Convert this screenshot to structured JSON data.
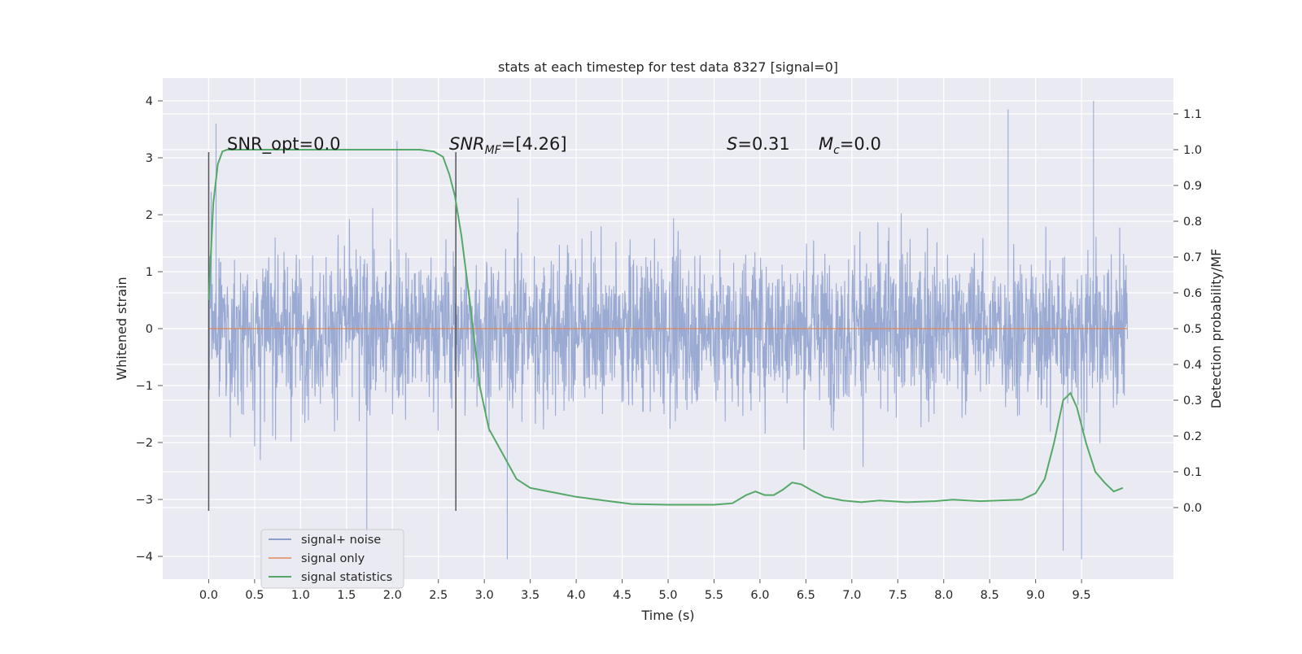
{
  "chart_data": {
    "type": "line",
    "title": "stats at each timestep for test data 8327 [signal=0]",
    "xlabel": "Time (s)",
    "ylabel": "Whitened strain",
    "y2label": "Detection probability/MF",
    "xlim": [
      -0.5,
      10.5
    ],
    "ylim": [
      -4.4,
      4.4
    ],
    "y2lim": [
      -0.2,
      1.2
    ],
    "x_ticks": [
      0.0,
      0.5,
      1.0,
      1.5,
      2.0,
      2.5,
      3.0,
      3.5,
      4.0,
      4.5,
      5.0,
      5.5,
      6.0,
      6.5,
      7.0,
      7.5,
      8.0,
      8.5,
      9.0,
      9.5
    ],
    "x_tick_labels": [
      "0.0",
      "0.5",
      "1.0",
      "1.5",
      "2.0",
      "2.5",
      "3.0",
      "3.5",
      "4.0",
      "4.5",
      "5.0",
      "5.5",
      "6.0",
      "6.5",
      "7.0",
      "7.5",
      "8.0",
      "8.5",
      "9.0",
      "9.5"
    ],
    "y_ticks": [
      4,
      3,
      2,
      1,
      0,
      -1,
      -2,
      -3,
      -4
    ],
    "y_tick_labels": [
      "4",
      "3",
      "2",
      "1",
      "0",
      "−1",
      "−2",
      "−3",
      "−4"
    ],
    "y2_ticks": [
      1.1,
      1.0,
      0.9,
      0.8,
      0.7,
      0.6,
      0.5,
      0.4,
      0.3,
      0.2,
      0.1,
      0.0
    ],
    "y2_tick_labels": [
      "1.1",
      "1.0",
      "0.9",
      "0.8",
      "0.7",
      "0.6",
      "0.5",
      "0.4",
      "0.3",
      "0.2",
      "0.1",
      "0.0"
    ],
    "grid": true,
    "legend_position": "lower-left",
    "legend": [
      "signal+ noise",
      "signal only",
      "signal statistics"
    ],
    "colors": {
      "signal_noise": "#8c9fcc",
      "signal_only": "#dd8452",
      "signal_statistics": "#55a868",
      "background": "#eaeaf2",
      "grid": "#ffffff"
    },
    "series": [
      {
        "name": "signal+ noise",
        "axis": "left",
        "x_range": [
          0.0,
          10.0
        ],
        "approx_envelope": [
          -4.05,
          4.0
        ],
        "note_peaks": [
          [
            0.08,
            3.6
          ],
          [
            8.7,
            3.85
          ],
          [
            9.63,
            4.0
          ],
          [
            2.05,
            3.3
          ],
          [
            1.72,
            -3.95
          ],
          [
            3.25,
            -4.05
          ],
          [
            9.3,
            -3.9
          ],
          [
            9.5,
            -4.05
          ]
        ]
      },
      {
        "name": "signal only",
        "axis": "left",
        "x": [
          0.0,
          10.0
        ],
        "y": [
          0.0,
          0.0
        ]
      },
      {
        "name": "signal statistics",
        "axis": "right",
        "x": [
          0.0,
          0.05,
          0.1,
          0.15,
          0.2,
          0.3,
          0.5,
          1.0,
          1.5,
          2.0,
          2.3,
          2.45,
          2.55,
          2.62,
          2.68,
          2.75,
          2.85,
          2.95,
          3.05,
          3.2,
          3.35,
          3.5,
          3.6,
          3.8,
          4.0,
          4.3,
          4.6,
          5.0,
          5.5,
          5.7,
          5.85,
          5.95,
          6.05,
          6.15,
          6.25,
          6.35,
          6.45,
          6.55,
          6.7,
          6.9,
          7.1,
          7.3,
          7.6,
          7.9,
          8.1,
          8.4,
          8.6,
          8.85,
          9.0,
          9.1,
          9.2,
          9.3,
          9.38,
          9.45,
          9.55,
          9.65,
          9.75,
          9.85,
          9.95
        ],
        "y": [
          0.58,
          0.85,
          0.96,
          0.995,
          1.0,
          1.0,
          1.0,
          1.0,
          1.0,
          1.0,
          1.0,
          0.995,
          0.98,
          0.93,
          0.87,
          0.76,
          0.56,
          0.34,
          0.22,
          0.15,
          0.08,
          0.055,
          0.05,
          0.04,
          0.03,
          0.02,
          0.01,
          0.008,
          0.008,
          0.012,
          0.035,
          0.045,
          0.035,
          0.035,
          0.05,
          0.07,
          0.065,
          0.05,
          0.03,
          0.02,
          0.015,
          0.02,
          0.015,
          0.018,
          0.022,
          0.018,
          0.02,
          0.022,
          0.04,
          0.08,
          0.18,
          0.3,
          0.32,
          0.28,
          0.18,
          0.1,
          0.07,
          0.045,
          0.055
        ]
      }
    ],
    "vlines": [
      {
        "x": 0.0,
        "ymin": -3.2,
        "ymax": 3.1
      },
      {
        "x": 2.69,
        "ymin": -3.2,
        "ymax": 3.1
      }
    ],
    "annotations": [
      {
        "text": "SNR_opt=0.0",
        "x": 0.2,
        "y": 3.2
      },
      {
        "text_main": "SNR",
        "text_sub": "MF",
        "text_rest": "=[4.26]",
        "x": 2.6,
        "y": 3.2
      },
      {
        "text_main": "S",
        "text_rest": "=0.31",
        "x": 5.6,
        "y": 3.2
      },
      {
        "text_main": "M",
        "text_sub": "c",
        "text_rest": "=0.0",
        "x": 6.6,
        "y": 3.2
      }
    ]
  }
}
